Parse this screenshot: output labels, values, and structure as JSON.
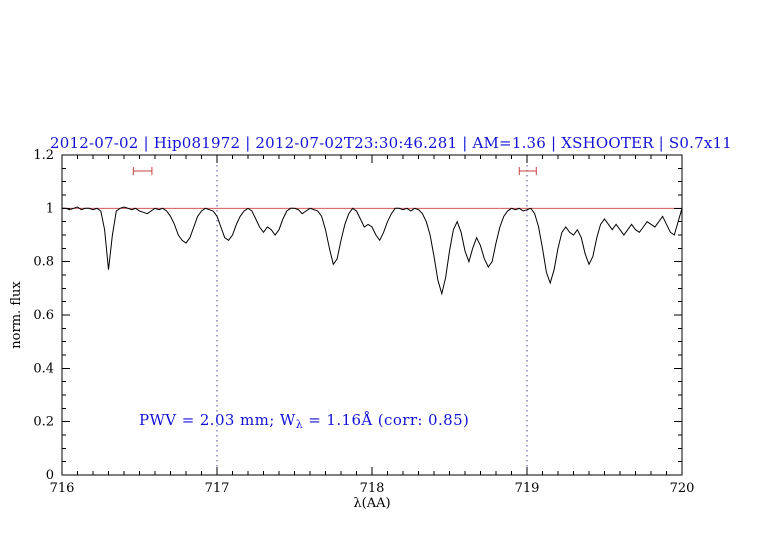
{
  "window": {
    "background": "#ffffff"
  },
  "chart_data": {
    "type": "line",
    "title": "2012-07-02 | Hip081972 | 2012-07-02T23:30:46.281 | AM=1.36 | XSHOOTER | S0.7x11",
    "xlabel": "λ(AA)",
    "ylabel": "norm. flux",
    "xlim": [
      716,
      720
    ],
    "ylim": [
      0,
      1.2
    ],
    "x_ticks": [
      716,
      717,
      718,
      719,
      720
    ],
    "x_tick_labels": [
      "716",
      "717",
      "718",
      "719",
      "720"
    ],
    "x_minor_step": 0.1,
    "y_ticks": [
      0,
      0.2,
      0.4,
      0.6,
      0.8,
      1,
      1.2
    ],
    "y_tick_labels": [
      "0",
      "0.2",
      "0.4",
      "0.6",
      "0.8",
      "1",
      "1.2"
    ],
    "y_minor_step": 0.05,
    "grid": false,
    "legend": "none",
    "colors": {
      "title": "#1212d6",
      "annotation": "#1212d6",
      "spectrum": "#000000",
      "continuum": "#c84040",
      "marker": "#c84040",
      "vline": "#4a4a9a",
      "axis": "#000000"
    },
    "continuum_level": 1.0,
    "dotted_vlines": [
      717,
      719
    ],
    "range_markers": [
      {
        "x1": 716.46,
        "x2": 716.58,
        "y": 1.14
      },
      {
        "x1": 718.95,
        "x2": 719.06,
        "y": 1.14
      }
    ],
    "annotation": {
      "prefix": "PWV = 2.03 mm; W",
      "sub": "λ",
      "suffix": " = 1.16Å (corr: 0.85)",
      "x": 716.5,
      "y": 0.22
    },
    "series": [
      {
        "name": "spectrum",
        "x_start": 716.0,
        "x_step": 0.025,
        "flux": [
          1.0,
          1.0,
          0.995,
          1.0,
          1.005,
          0.995,
          1.0,
          1.0,
          0.995,
          1.0,
          0.99,
          0.92,
          0.77,
          0.9,
          0.99,
          1.0,
          1.005,
          1.0,
          0.995,
          1.0,
          0.99,
          0.985,
          0.98,
          0.99,
          1.0,
          0.995,
          1.0,
          0.99,
          0.97,
          0.94,
          0.9,
          0.88,
          0.87,
          0.89,
          0.93,
          0.97,
          0.99,
          1.0,
          0.995,
          0.99,
          0.97,
          0.93,
          0.89,
          0.88,
          0.9,
          0.94,
          0.97,
          0.99,
          1.0,
          0.99,
          0.96,
          0.93,
          0.91,
          0.93,
          0.92,
          0.9,
          0.92,
          0.96,
          0.99,
          1.0,
          1.0,
          0.995,
          0.98,
          0.99,
          1.0,
          0.995,
          0.99,
          0.97,
          0.92,
          0.85,
          0.79,
          0.81,
          0.88,
          0.94,
          0.98,
          1.0,
          0.99,
          0.96,
          0.93,
          0.94,
          0.93,
          0.9,
          0.88,
          0.91,
          0.95,
          0.98,
          1.0,
          1.0,
          0.995,
          1.0,
          0.99,
          1.0,
          0.995,
          0.98,
          0.95,
          0.9,
          0.82,
          0.73,
          0.68,
          0.74,
          0.84,
          0.92,
          0.95,
          0.91,
          0.84,
          0.8,
          0.85,
          0.89,
          0.86,
          0.81,
          0.78,
          0.8,
          0.87,
          0.93,
          0.97,
          0.99,
          1.0,
          0.995,
          1.0,
          0.99,
          0.995,
          1.0,
          0.98,
          0.93,
          0.85,
          0.76,
          0.72,
          0.77,
          0.85,
          0.91,
          0.93,
          0.91,
          0.9,
          0.92,
          0.89,
          0.83,
          0.79,
          0.82,
          0.89,
          0.94,
          0.96,
          0.94,
          0.92,
          0.94,
          0.92,
          0.9,
          0.92,
          0.94,
          0.92,
          0.91,
          0.93,
          0.95,
          0.94,
          0.93,
          0.95,
          0.97,
          0.94,
          0.91,
          0.9,
          0.95,
          1.0
        ]
      }
    ]
  }
}
